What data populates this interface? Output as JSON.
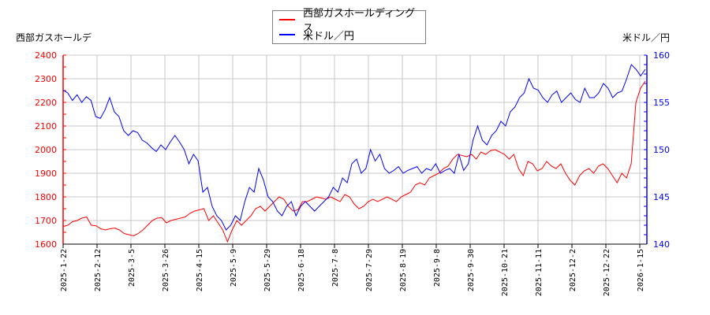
{
  "legend": {
    "items": [
      {
        "label": "西部ガスホールディングス",
        "color": "#ff0000"
      },
      {
        "label": "米ドル／円",
        "color": "#0000ff"
      }
    ]
  },
  "axes": {
    "left_title": "西部ガスホールデ",
    "right_title": "米ドル／円"
  },
  "chart_data": {
    "type": "line",
    "title": "",
    "xlabel": "",
    "ylabel_left": "西部ガスホールデ",
    "ylabel_right": "米ドル／円",
    "x_tick_labels": [
      "2025-1-22",
      "2025-2-12",
      "2025-3-5",
      "2025-3-26",
      "2025-4-15",
      "2025-5-9",
      "2025-5-29",
      "2025-6-18",
      "2025-7-8",
      "2025-7-29",
      "2025-8-19",
      "2025-9-8",
      "2025-9-30",
      "2025-10-21",
      "2025-11-11",
      "2025-12-2",
      "2025-12-22",
      "2026-1-15"
    ],
    "y_left": {
      "range": [
        1600,
        2400
      ],
      "ticks": [
        1600,
        1700,
        1800,
        1900,
        2000,
        2100,
        2200,
        2300,
        2400
      ],
      "color": "#ff0000"
    },
    "y_right": {
      "range": [
        140,
        160
      ],
      "ticks": [
        140,
        145,
        150,
        155,
        160
      ],
      "color": "#0000ff"
    },
    "grid": true,
    "legend_position": "top-center",
    "series": [
      {
        "name": "西部ガスホールディングス",
        "axis": "left",
        "color": "#ff0000",
        "points_x_index": [
          0,
          1,
          2,
          3,
          4,
          5,
          6,
          7,
          8,
          9,
          10,
          11,
          12,
          13,
          14,
          15,
          16,
          17,
          18,
          19,
          20,
          21,
          22,
          23,
          24,
          25,
          26,
          27,
          28,
          29,
          30,
          31,
          32,
          33,
          34,
          35,
          36,
          37,
          38,
          39,
          40,
          41,
          42,
          43,
          44,
          45,
          46,
          47,
          48,
          49,
          50,
          51,
          52,
          53,
          54,
          55,
          56,
          57,
          58,
          59,
          60,
          61,
          62,
          63,
          64,
          65,
          66,
          67,
          68,
          69,
          70,
          71,
          72,
          73,
          74,
          75,
          76,
          77,
          78,
          79,
          80,
          81,
          82,
          83,
          84,
          85,
          86,
          87,
          88,
          89,
          90,
          91,
          92,
          93,
          94,
          95,
          96,
          97,
          98,
          99,
          100,
          101,
          102,
          103,
          104,
          105,
          106,
          107,
          108,
          109,
          110,
          111,
          112,
          113,
          114,
          115,
          116,
          117,
          118,
          119,
          120,
          121,
          122,
          123,
          124
        ],
        "values": [
          1675,
          1680,
          1695,
          1700,
          1710,
          1715,
          1680,
          1678,
          1665,
          1660,
          1665,
          1668,
          1660,
          1645,
          1640,
          1635,
          1645,
          1660,
          1680,
          1700,
          1710,
          1712,
          1690,
          1700,
          1705,
          1710,
          1715,
          1730,
          1740,
          1745,
          1750,
          1700,
          1720,
          1690,
          1660,
          1610,
          1660,
          1700,
          1680,
          1700,
          1720,
          1750,
          1760,
          1740,
          1760,
          1780,
          1800,
          1790,
          1760,
          1740,
          1745,
          1780,
          1780,
          1790,
          1800,
          1795,
          1790,
          1800,
          1790,
          1780,
          1810,
          1800,
          1770,
          1750,
          1760,
          1780,
          1790,
          1780,
          1790,
          1800,
          1790,
          1780,
          1800,
          1810,
          1820,
          1850,
          1860,
          1850,
          1880,
          1890,
          1900,
          1920,
          1930,
          1960,
          1980,
          1975,
          1970,
          1980,
          1960,
          1990,
          1980,
          1995,
          2000,
          1990,
          1980,
          1960,
          1980,
          1920,
          1890,
          1950,
          1940,
          1910,
          1920,
          1950,
          1930,
          1920,
          1940,
          1900,
          1870,
          1850,
          1890,
          1910,
          1920,
          1900,
          1930,
          1940,
          1920,
          1890,
          1860,
          1900,
          1880,
          1940,
          2200,
          2260,
          2290
        ]
      },
      {
        "name": "米ドル／円",
        "axis": "right",
        "values_note": "JPY per USD",
        "color": "#0000ff",
        "values": [
          156.3,
          156.0,
          155.2,
          155.8,
          155.0,
          155.6,
          155.2,
          153.5,
          153.3,
          154.2,
          155.5,
          154.0,
          153.5,
          152.0,
          151.5,
          152.0,
          151.8,
          151.0,
          150.7,
          150.2,
          149.8,
          150.5,
          150.0,
          150.8,
          151.5,
          150.8,
          150.0,
          148.5,
          149.5,
          148.8,
          145.5,
          146.0,
          144.0,
          143.0,
          142.5,
          141.5,
          142.0,
          143.0,
          142.5,
          144.5,
          146.0,
          145.5,
          148.0,
          146.8,
          145.0,
          144.5,
          143.5,
          143.0,
          144.0,
          144.5,
          143.0,
          144.0,
          144.5,
          144.0,
          143.5,
          144.0,
          144.5,
          145.0,
          146.0,
          145.5,
          147.0,
          146.5,
          148.5,
          149.0,
          147.5,
          148.0,
          150.0,
          148.8,
          149.5,
          148.0,
          147.5,
          147.8,
          148.2,
          147.5,
          147.8,
          148.0,
          148.2,
          147.5,
          148.0,
          147.8,
          148.5,
          147.5,
          147.8,
          148.0,
          147.5,
          149.5,
          147.8,
          148.5,
          151.0,
          152.5,
          151.0,
          150.5,
          151.5,
          152.0,
          153.0,
          152.5,
          154.0,
          154.5,
          155.5,
          156.0,
          157.5,
          156.5,
          156.3,
          155.5,
          155.0,
          155.8,
          156.2,
          155.0,
          155.5,
          156.0,
          155.3,
          155.0,
          156.5,
          155.5,
          155.5,
          156.0,
          157.0,
          156.5,
          155.5,
          156.0,
          156.2,
          157.5,
          159.0,
          158.5,
          157.8,
          158.5
        ]
      }
    ]
  }
}
